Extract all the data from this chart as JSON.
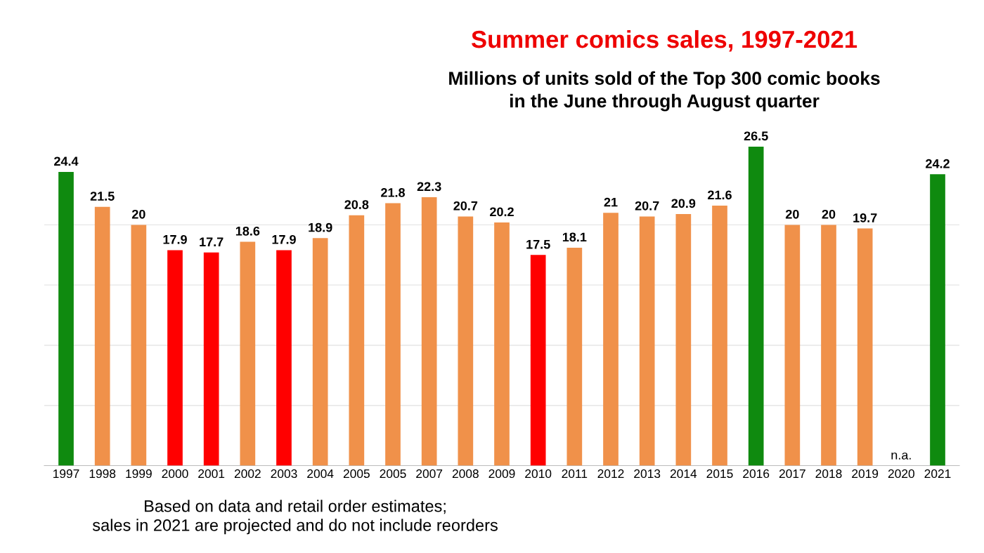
{
  "chart_data": {
    "type": "bar",
    "title": "Summer comics sales, 1997-2021",
    "subtitle": "Millions of units sold of the Top 300 comic books\nin the June through August quarter",
    "categories": [
      "1997",
      "1998",
      "1999",
      "2000",
      "2001",
      "2002",
      "2003",
      "2004",
      "2005",
      "2005",
      "2007",
      "2008",
      "2009",
      "2010",
      "2011",
      "2012",
      "2013",
      "2014",
      "2015",
      "2016",
      "2017",
      "2018",
      "2019",
      "2020",
      "2021"
    ],
    "values": [
      24.4,
      21.5,
      20,
      17.9,
      17.7,
      18.6,
      17.9,
      18.9,
      20.8,
      21.8,
      22.3,
      20.7,
      20.2,
      17.5,
      18.1,
      21,
      20.7,
      20.9,
      21.6,
      26.5,
      20,
      20,
      19.7,
      null,
      24.2
    ],
    "value_labels": [
      "24.4",
      "21.5",
      "20",
      "17.9",
      "17.7",
      "18.6",
      "17.9",
      "18.9",
      "20.8",
      "21.8",
      "22.3",
      "20.7",
      "20.2",
      "17.5",
      "18.1",
      "21",
      "20.7",
      "20.9",
      "21.6",
      "26.5",
      "20",
      "20",
      "19.7",
      "n.a.",
      "24.2"
    ],
    "colors": [
      "#0f8a0f",
      "#f0914a",
      "#f0914a",
      "#ff0000",
      "#ff0000",
      "#f0914a",
      "#ff0000",
      "#f0914a",
      "#f0914a",
      "#f0914a",
      "#f0914a",
      "#f0914a",
      "#f0914a",
      "#ff0000",
      "#f0914a",
      "#f0914a",
      "#f0914a",
      "#f0914a",
      "#f0914a",
      "#0f8a0f",
      "#f0914a",
      "#f0914a",
      "#f0914a",
      "#f0914a",
      "#0f8a0f"
    ],
    "yticks": [
      {
        "value": 5,
        "label": null
      },
      {
        "value": 10,
        "label": null
      },
      {
        "value": 15,
        "label": null
      },
      {
        "value": 20,
        "label": null
      }
    ],
    "grid": "y",
    "tick_labels": "x",
    "annotations": [
      "Based on data and retail order estimates;\nsales in 2021 are projected and do not include reorders"
    ]
  }
}
